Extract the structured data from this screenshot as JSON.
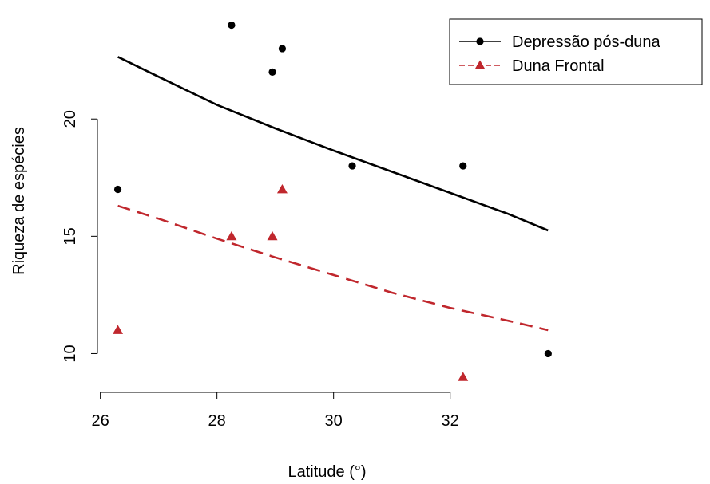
{
  "chart_data": {
    "type": "scatter",
    "xlabel": "Latitude (°)",
    "ylabel": "Riqueza de espécies",
    "xlim": [
      25.95,
      34.1
    ],
    "ylim": [
      8.35,
      24.8
    ],
    "x_ticks": [
      26,
      28,
      30,
      32
    ],
    "y_ticks": [
      10,
      15,
      20
    ],
    "x_tick_labels": [
      "26",
      "28",
      "30",
      "32"
    ],
    "y_tick_labels": [
      "10",
      "15",
      "20"
    ],
    "legend_position": "top-right",
    "series": [
      {
        "name": "Depressão pós-duna",
        "marker": "circle",
        "color": "#000000",
        "line_style": "solid",
        "points": [
          {
            "x": 26.3,
            "y": 17
          },
          {
            "x": 28.25,
            "y": 24
          },
          {
            "x": 28.95,
            "y": 22
          },
          {
            "x": 29.12,
            "y": 23
          },
          {
            "x": 30.32,
            "y": 18
          },
          {
            "x": 32.22,
            "y": 18
          },
          {
            "x": 33.68,
            "y": 10
          }
        ],
        "fit": [
          {
            "x": 26.3,
            "y": 22.65
          },
          {
            "x": 27.0,
            "y": 21.8
          },
          {
            "x": 28.0,
            "y": 20.6
          },
          {
            "x": 29.0,
            "y": 19.6
          },
          {
            "x": 30.0,
            "y": 18.65
          },
          {
            "x": 31.0,
            "y": 17.75
          },
          {
            "x": 32.0,
            "y": 16.85
          },
          {
            "x": 33.0,
            "y": 15.95
          },
          {
            "x": 33.68,
            "y": 15.25
          }
        ]
      },
      {
        "name": "Duna Frontal",
        "marker": "triangle",
        "color": "#c0272d",
        "line_style": "dashed",
        "points": [
          {
            "x": 26.3,
            "y": 11
          },
          {
            "x": 28.25,
            "y": 15
          },
          {
            "x": 28.95,
            "y": 15
          },
          {
            "x": 29.12,
            "y": 17
          },
          {
            "x": 32.22,
            "y": 9
          }
        ],
        "fit": [
          {
            "x": 26.3,
            "y": 16.3
          },
          {
            "x": 27.0,
            "y": 15.75
          },
          {
            "x": 28.0,
            "y": 14.9
          },
          {
            "x": 29.0,
            "y": 14.1
          },
          {
            "x": 30.0,
            "y": 13.35
          },
          {
            "x": 31.0,
            "y": 12.6
          },
          {
            "x": 32.0,
            "y": 11.95
          },
          {
            "x": 33.0,
            "y": 11.4
          },
          {
            "x": 33.68,
            "y": 11.0
          }
        ]
      }
    ]
  }
}
